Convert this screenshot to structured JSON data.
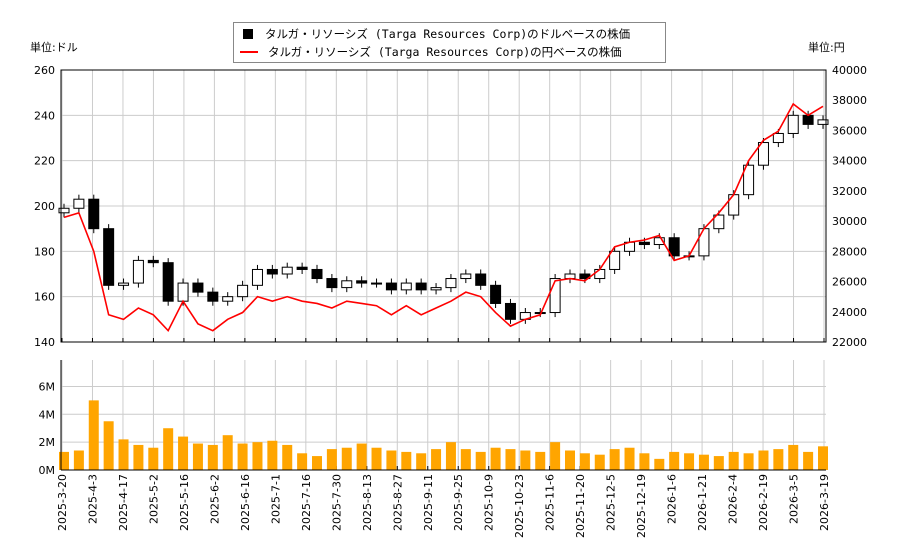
{
  "units": {
    "left": "単位:ドル",
    "right": "単位:円"
  },
  "legend": [
    {
      "label": "タルガ・リソーシズ (Targa Resources Corp)のドルベースの株価",
      "color": "#000000"
    },
    {
      "label": "タルガ・リソーシズ (Targa Resources Corp)の円ベースの株価",
      "color": "#ff0000"
    }
  ],
  "chart_data": [
    {
      "type": "candlestick+line",
      "title": "",
      "y_left": {
        "range": [
          140,
          260
        ],
        "ticks": [
          140,
          160,
          180,
          200,
          220,
          240,
          260
        ]
      },
      "y_right": {
        "range": [
          22000,
          40000
        ],
        "ticks": [
          22000,
          24000,
          26000,
          28000,
          30000,
          32000,
          34000,
          36000,
          38000,
          40000
        ]
      },
      "x_ticks": [
        "2025-3-20",
        "2025-4-3",
        "2025-4-17",
        "2025-5-2",
        "2025-5-16",
        "2025-6-2",
        "2025-6-16",
        "2025-7-1",
        "2025-7-16",
        "2025-7-30",
        "2025-8-13",
        "2025-8-27",
        "2025-9-11",
        "2025-9-25",
        "2025-10-9",
        "2025-10-23",
        "2025-11-6",
        "2025-11-20",
        "2025-12-5",
        "2025-12-19",
        "2026-1-6",
        "2026-1-21",
        "2026-2-4",
        "2026-2-19",
        "2026-3-5",
        "2026-3-19"
      ],
      "grid": true,
      "series": [
        {
          "name": "ドルベース",
          "color": "#000000",
          "close": [
            199,
            203,
            190,
            165,
            166,
            176,
            175,
            158,
            166,
            162,
            158,
            160,
            165,
            172,
            170,
            173,
            172,
            168,
            164,
            167,
            166,
            166,
            163,
            166,
            163,
            164,
            168,
            170,
            165,
            157,
            150,
            153,
            153,
            168,
            170,
            168,
            172,
            180,
            184,
            183,
            186,
            178,
            178,
            190,
            196,
            205,
            218,
            228,
            232,
            240,
            236,
            238
          ]
        },
        {
          "name": "円ベース",
          "color": "#ff0000",
          "values": [
            30250,
            30550,
            28000,
            23800,
            23500,
            24250,
            23800,
            22750,
            24700,
            23200,
            22750,
            23500,
            23950,
            25000,
            24700,
            25000,
            24700,
            24550,
            24250,
            24700,
            24550,
            24400,
            23800,
            24400,
            23800,
            24250,
            24700,
            25300,
            25000,
            23950,
            23050,
            23500,
            23800,
            26050,
            26200,
            26050,
            26800,
            28300,
            28600,
            28750,
            29050,
            27400,
            27700,
            29500,
            30550,
            31750,
            34000,
            35350,
            35950,
            37750,
            37000,
            37600
          ]
        }
      ]
    },
    {
      "type": "bar",
      "title": "",
      "ylim": [
        0,
        7.9
      ],
      "y_ticks": [
        "0M",
        "2M",
        "4M",
        "6M"
      ],
      "color": "#ffa500",
      "values_millions": [
        1.3,
        1.4,
        5.0,
        3.5,
        2.2,
        1.8,
        1.6,
        3.0,
        2.4,
        1.9,
        1.8,
        2.5,
        1.9,
        2.0,
        2.1,
        1.8,
        1.2,
        1.0,
        1.5,
        1.6,
        1.9,
        1.6,
        1.4,
        1.3,
        1.2,
        1.5,
        2.0,
        1.5,
        1.3,
        1.6,
        1.5,
        1.4,
        1.3,
        2.0,
        1.4,
        1.2,
        1.1,
        1.5,
        1.6,
        1.2,
        0.8,
        1.3,
        1.2,
        1.1,
        1.0,
        1.3,
        1.2,
        1.4,
        1.5,
        1.8,
        1.3,
        1.7
      ]
    }
  ]
}
